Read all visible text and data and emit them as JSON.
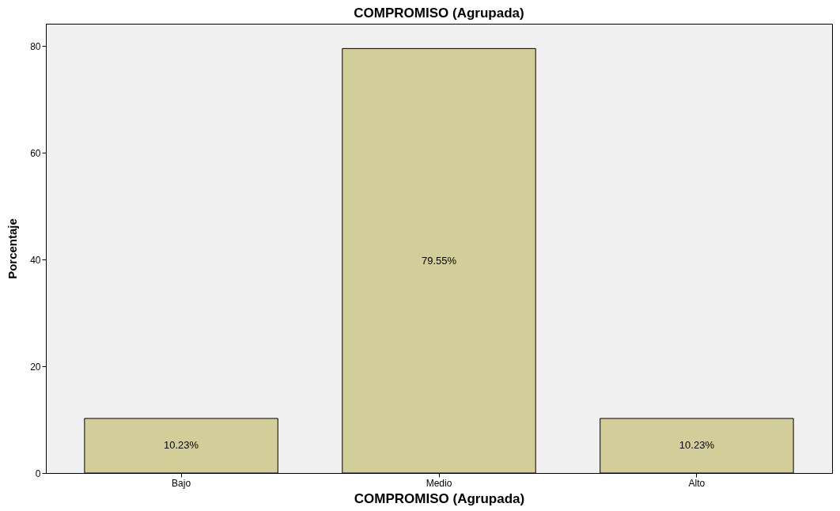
{
  "chart_data": {
    "type": "bar",
    "title": "COMPROMISO (Agrupada)",
    "xlabel": "COMPROMISO (Agrupada)",
    "ylabel": "Porcentaje",
    "categories": [
      "Bajo",
      "Medio",
      "Alto"
    ],
    "values": [
      10.23,
      79.55,
      10.23
    ],
    "value_labels": [
      "10.23%",
      "79.55%",
      "10.23%"
    ],
    "color": "#d3ce99",
    "ylim": [
      0,
      84.2
    ],
    "yticks": [
      0,
      20,
      40,
      60,
      80
    ],
    "grid": false
  }
}
